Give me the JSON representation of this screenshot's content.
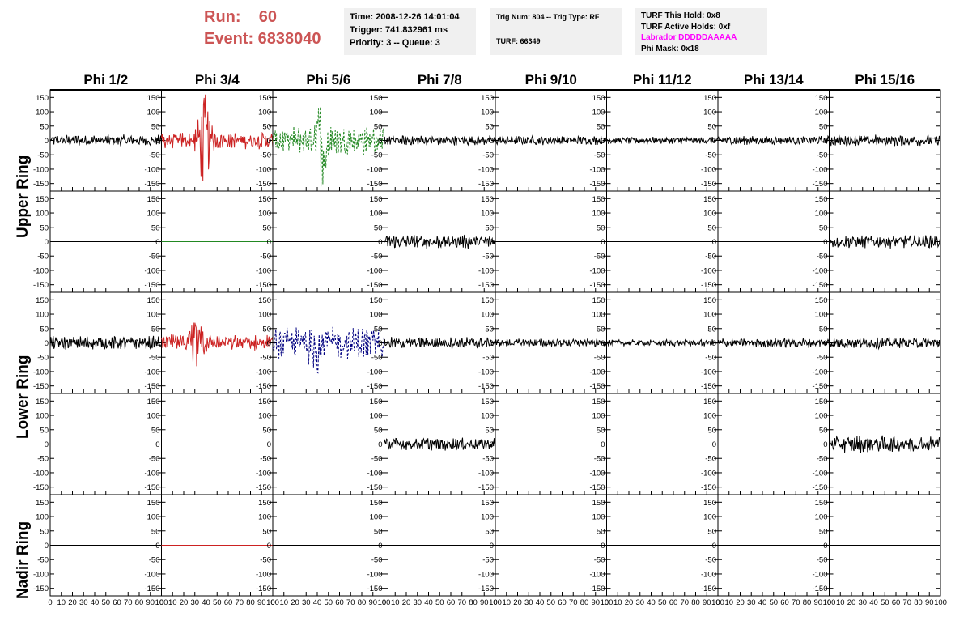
{
  "header": {
    "run_label": "Run:    60",
    "event_label": "Event: 6838040",
    "time": "Time: 2008-12-26 14:01:04",
    "trigger": "Trigger: 741.832961 ms",
    "priority": "Priority: 3 -- Queue: 3",
    "trig_num": "Trig Num: 804 -- Trig Type: RF",
    "turf": "TURF: 66349",
    "turf_this_hold": "TURF This Hold: 0x8",
    "turf_active_holds": "TURF Active Holds: 0xf",
    "labrador": "Labrador DDDDDAAAAA",
    "phi_mask": "Phi Mask: 0x18"
  },
  "colors": {
    "run_text": "#cc5555",
    "labrador": "#ff00ff",
    "black": "#000000",
    "red": "#cc2222",
    "green": "#228822",
    "blue": "#000080",
    "info_bg": "#f0f0f0"
  },
  "row_labels": [
    "Upper Ring",
    "Lower Ring",
    "Nadir Ring"
  ],
  "chart_data": {
    "type": "line",
    "columns": [
      "Phi 1/2",
      "Phi 3/4",
      "Phi 5/6",
      "Phi 7/8",
      "Phi 9/10",
      "Phi 11/12",
      "Phi 13/14",
      "Phi 15/16"
    ],
    "xlim": [
      0,
      100
    ],
    "ylim": [
      -165,
      165
    ],
    "ytick_labels": [
      "150",
      "100",
      "50",
      "0",
      "-50",
      "-100",
      "-150"
    ],
    "ytick_values": [
      150,
      100,
      50,
      0,
      -50,
      -100,
      -150
    ],
    "xtick_labels": [
      "0",
      "10",
      "20",
      "30",
      "40",
      "50",
      "60",
      "70",
      "80",
      "90",
      "100"
    ],
    "xtick_values": [
      0,
      10,
      20,
      30,
      40,
      50,
      60,
      70,
      80,
      90,
      100
    ],
    "rows": [
      [
        {
          "color": "black",
          "kind": "noise",
          "amp": 15
        },
        {
          "color": "red",
          "kind": "burst",
          "amp": 22,
          "burst_center": 38,
          "burst_amp": 160
        },
        {
          "color": "green",
          "kind": "dash",
          "amp": 38,
          "burst_center": 45,
          "burst_amp": 160
        },
        {
          "color": "black",
          "kind": "noise",
          "amp": 13
        },
        {
          "color": "black",
          "kind": "noise",
          "amp": 12
        },
        {
          "color": "black",
          "kind": "noise",
          "amp": 9
        },
        {
          "color": "black",
          "kind": "noise",
          "amp": 12
        },
        {
          "color": "black",
          "kind": "noise",
          "amp": 15
        }
      ],
      [
        {
          "color": "black",
          "kind": "flat",
          "amp": 0
        },
        {
          "color": "green",
          "kind": "flat",
          "amp": 0
        },
        {
          "color": "black",
          "kind": "flat",
          "amp": 0
        },
        {
          "color": "black",
          "kind": "noise",
          "amp": 18
        },
        {
          "color": "black",
          "kind": "flat",
          "amp": 0
        },
        {
          "color": "black",
          "kind": "flat",
          "amp": 0
        },
        {
          "color": "black",
          "kind": "flat",
          "amp": 0
        },
        {
          "color": "black",
          "kind": "noise",
          "amp": 17
        }
      ],
      [
        {
          "color": "black",
          "kind": "noise",
          "amp": 18
        },
        {
          "color": "red",
          "kind": "burst",
          "amp": 22,
          "burst_center": 32,
          "burst_amp": 85
        },
        {
          "color": "blue",
          "kind": "dash",
          "amp": 40,
          "burst_center": 40,
          "burst_amp": 125
        },
        {
          "color": "black",
          "kind": "noise",
          "amp": 15
        },
        {
          "color": "black",
          "kind": "noise",
          "amp": 11
        },
        {
          "color": "black",
          "kind": "noise",
          "amp": 9
        },
        {
          "color": "black",
          "kind": "noise",
          "amp": 13
        },
        {
          "color": "black",
          "kind": "noise",
          "amp": 15
        }
      ],
      [
        {
          "color": "green",
          "kind": "flat",
          "amp": 0
        },
        {
          "color": "green",
          "kind": "flat",
          "amp": 0
        },
        {
          "color": "black",
          "kind": "flat",
          "amp": 0
        },
        {
          "color": "black",
          "kind": "noise",
          "amp": 17
        },
        {
          "color": "black",
          "kind": "flat",
          "amp": 0
        },
        {
          "color": "black",
          "kind": "flat",
          "amp": 0
        },
        {
          "color": "black",
          "kind": "flat",
          "amp": 0
        },
        {
          "color": "black",
          "kind": "noise",
          "amp": 22
        }
      ],
      [
        {
          "color": "black",
          "kind": "flat",
          "amp": 0
        },
        {
          "color": "red",
          "kind": "flat",
          "amp": 0
        },
        {
          "color": "black",
          "kind": "flat",
          "amp": 0
        },
        {
          "color": "black",
          "kind": "flat",
          "amp": 0
        },
        {
          "color": "black",
          "kind": "flat",
          "amp": 0
        },
        {
          "color": "black",
          "kind": "flat",
          "amp": 0
        },
        {
          "color": "black",
          "kind": "flat",
          "amp": 0
        },
        {
          "color": "black",
          "kind": "flat",
          "amp": 0
        }
      ]
    ]
  }
}
